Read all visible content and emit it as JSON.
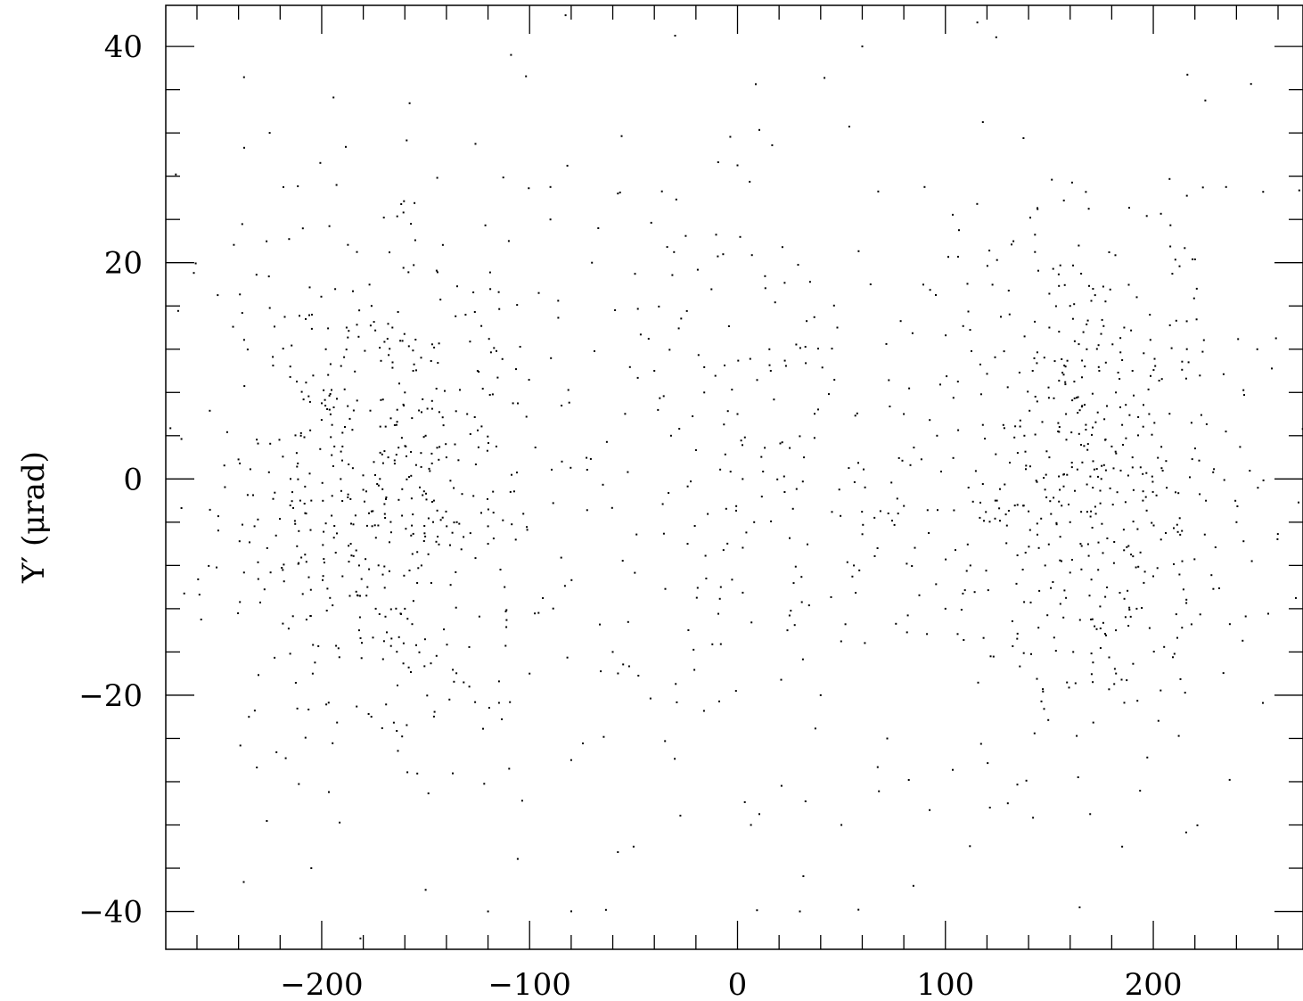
{
  "chart_data": {
    "type": "scatter",
    "title": "",
    "xlabel": "",
    "ylabel": "Y′ (μrad)",
    "xlim": [
      -275,
      272
    ],
    "ylim": [
      -43.5,
      43.8
    ],
    "x_major_ticks": [
      -200,
      -100,
      0,
      100,
      200
    ],
    "x_tick_labels": [
      "−200",
      "−100",
      "0",
      "100",
      "200"
    ],
    "x_minor_step": 20,
    "y_major_ticks": [
      -40,
      -20,
      0,
      20,
      40
    ],
    "y_tick_labels": [
      "−40",
      "−20",
      "0",
      "20",
      "40"
    ],
    "y_minor_step": 4,
    "grid": false,
    "legend": "none",
    "point_color": "#000000",
    "frame_color": "#000000",
    "point_count_estimate": 1500,
    "left_cluster_center": [
      -178,
      0
    ],
    "right_cluster_center": [
      170,
      0
    ],
    "points": [
      [
        -200,
        7
      ],
      [
        -195,
        5
      ],
      [
        -190,
        3
      ],
      [
        -185,
        1
      ],
      [
        -180,
        -1
      ],
      [
        -176,
        -3
      ],
      [
        -172,
        0
      ],
      [
        -168,
        2
      ],
      [
        -164,
        5
      ],
      [
        -160,
        8
      ],
      [
        -186,
        -6
      ],
      [
        -182,
        -8
      ],
      [
        -178,
        -10
      ],
      [
        -174,
        -12
      ],
      [
        -190,
        -9
      ],
      [
        -205,
        -2
      ],
      [
        -210,
        4
      ],
      [
        -198,
        12
      ],
      [
        -188,
        14
      ],
      [
        -176,
        16
      ],
      [
        -166,
        14
      ],
      [
        -156,
        10
      ],
      [
        -150,
        4
      ],
      [
        -146,
        -2
      ],
      [
        -152,
        -8
      ],
      [
        -160,
        -12
      ],
      [
        -170,
        -15
      ],
      [
        -182,
        -14
      ],
      [
        -196,
        -11
      ],
      [
        -208,
        -7
      ],
      [
        -215,
        0
      ],
      [
        -212,
        9
      ],
      [
        -140,
        2
      ],
      [
        -135,
        -4
      ],
      [
        -130,
        6
      ],
      [
        -125,
        10
      ],
      [
        -120,
        -6
      ],
      [
        -116,
        3
      ],
      [
        -112,
        -10
      ],
      [
        -108,
        7
      ],
      [
        150,
        2
      ],
      [
        155,
        -1
      ],
      [
        160,
        -4
      ],
      [
        165,
        -6
      ],
      [
        170,
        -3
      ],
      [
        175,
        0
      ],
      [
        180,
        3
      ],
      [
        185,
        5
      ],
      [
        190,
        2
      ],
      [
        195,
        -2
      ],
      [
        158,
        6
      ],
      [
        162,
        9
      ],
      [
        168,
        12
      ],
      [
        174,
        10
      ],
      [
        182,
        8
      ],
      [
        190,
        10
      ],
      [
        198,
        6
      ],
      [
        204,
        1
      ],
      [
        206,
        -5
      ],
      [
        200,
        -9
      ],
      [
        192,
        -12
      ],
      [
        182,
        -14
      ],
      [
        170,
        -13
      ],
      [
        158,
        -11
      ],
      [
        148,
        -8
      ],
      [
        140,
        -3
      ],
      [
        138,
        4
      ],
      [
        142,
        10
      ],
      [
        150,
        14
      ],
      [
        160,
        16
      ],
      [
        172,
        17
      ],
      [
        186,
        14
      ],
      [
        124,
        -2
      ],
      [
        118,
        5
      ],
      [
        112,
        -8
      ],
      [
        106,
        9
      ],
      [
        100,
        -12
      ],
      [
        96,
        4
      ],
      [
        92,
        -5
      ],
      [
        -40,
        10
      ],
      [
        -32,
        4
      ],
      [
        -24,
        -6
      ],
      [
        -16,
        8
      ],
      [
        -8,
        -10
      ],
      [
        0,
        6
      ],
      [
        8,
        -4
      ],
      [
        16,
        10
      ],
      [
        24,
        -14
      ],
      [
        32,
        2
      ],
      [
        40,
        -20
      ],
      [
        48,
        14
      ],
      [
        56,
        -8
      ],
      [
        64,
        18
      ],
      [
        72,
        -24
      ],
      [
        80,
        6
      ],
      [
        -60,
        -16
      ],
      [
        -70,
        20
      ],
      [
        -80,
        -26
      ],
      [
        -90,
        24
      ],
      [
        -100,
        -18
      ],
      [
        -110,
        22
      ],
      [
        -235,
        -22
      ],
      [
        -225,
        32
      ],
      [
        -205,
        -36
      ],
      [
        -150,
        -38
      ],
      [
        -90,
        27
      ],
      [
        -50,
        -34
      ],
      [
        0,
        29
      ],
      [
        50,
        -32
      ],
      [
        90,
        27
      ],
      [
        130,
        -30
      ],
      [
        185,
        -34
      ],
      [
        225,
        35
      ],
      [
        235,
        27
      ],
      [
        -250,
        17
      ],
      [
        -258,
        -13
      ],
      [
        240,
        -4
      ],
      [
        250,
        12
      ],
      [
        30,
        -40
      ],
      [
        -30,
        41
      ],
      [
        60,
        40
      ],
      [
        -120,
        -40
      ]
    ]
  }
}
